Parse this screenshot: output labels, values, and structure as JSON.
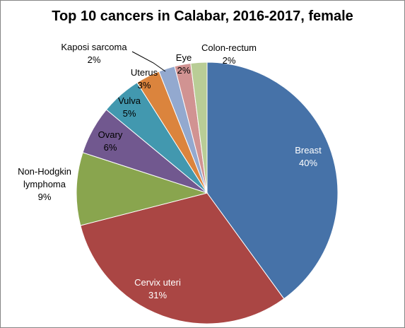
{
  "chart_data": {
    "type": "pie",
    "title": "Top 10 cancers in Calabar, 2016-2017,  female",
    "slices": [
      {
        "label": "Breast",
        "value": 40,
        "pct_label": "40%",
        "color": "#4672a8"
      },
      {
        "label": "Cervix uteri",
        "value": 31,
        "pct_label": "31%",
        "color": "#aa4644"
      },
      {
        "label": "Non-Hodgkin lymphoma",
        "value": 9,
        "pct_label": "9%",
        "color": "#89a54e"
      },
      {
        "label": "Ovary",
        "value": 6,
        "pct_label": "6%",
        "color": "#71588f"
      },
      {
        "label": "Vulva",
        "value": 5,
        "pct_label": "5%",
        "color": "#4298af"
      },
      {
        "label": "Uterus",
        "value": 3,
        "pct_label": "3%",
        "color": "#db843d"
      },
      {
        "label": "Kaposi sarcoma",
        "value": 2,
        "pct_label": "2%",
        "color": "#93a9cf"
      },
      {
        "label": "Eye",
        "value": 2,
        "pct_label": "2%",
        "color": "#d19392"
      },
      {
        "label": "Colon-rectum",
        "value": 2,
        "pct_label": "2%",
        "color": "#b9cd96"
      }
    ],
    "legend": "none"
  }
}
